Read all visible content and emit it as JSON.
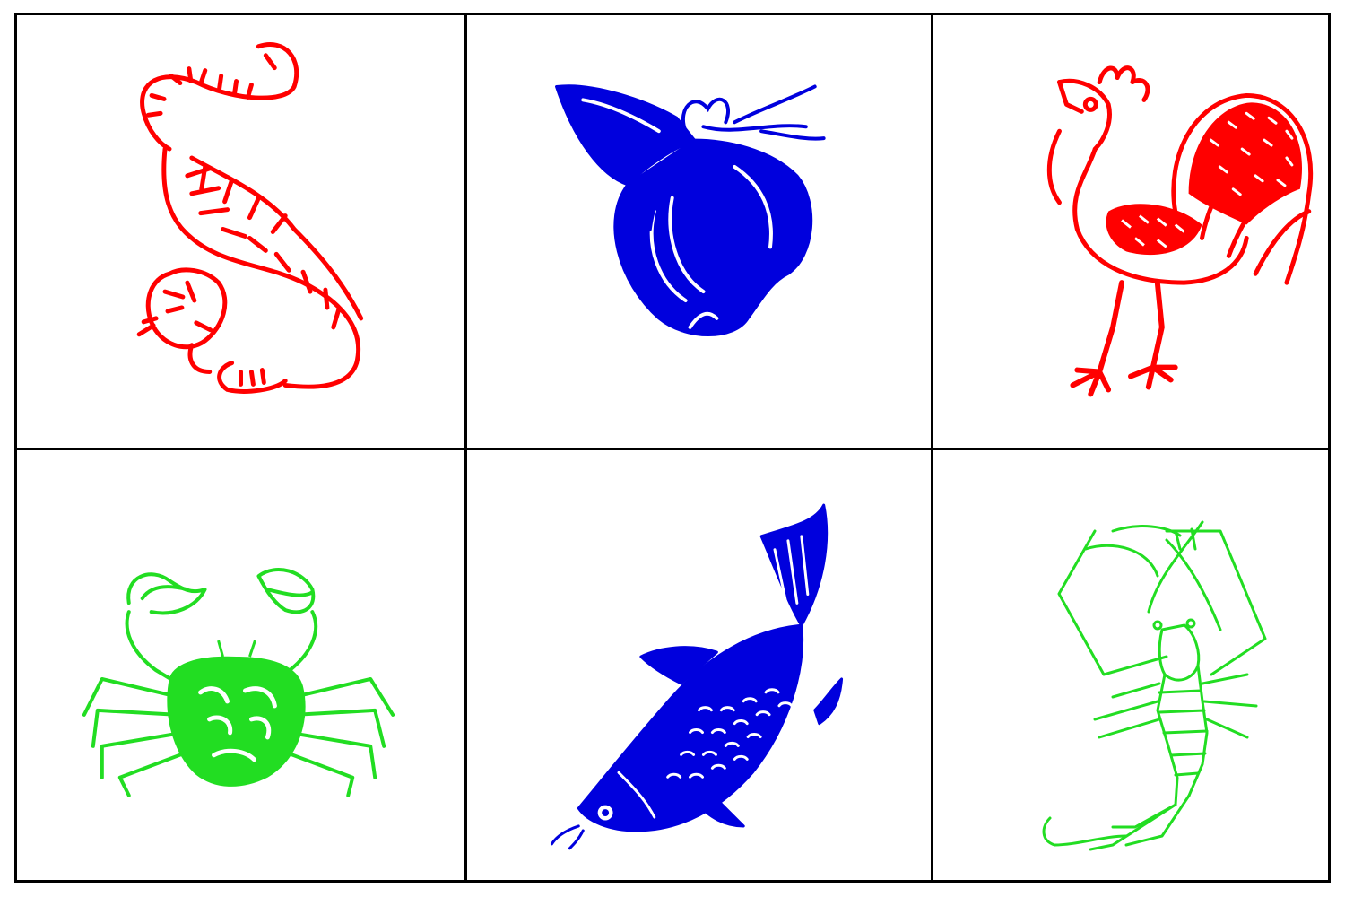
{
  "board": {
    "rows": 2,
    "cols": 3,
    "cells": [
      {
        "symbol": "tiger-icon",
        "color": "#ff0000"
      },
      {
        "symbol": "gourd-icon",
        "color": "#0000dd"
      },
      {
        "symbol": "rooster-icon",
        "color": "#ff0000"
      },
      {
        "symbol": "crab-icon",
        "color": "#22dd22"
      },
      {
        "symbol": "fish-icon",
        "color": "#0000dd"
      },
      {
        "symbol": "shrimp-icon",
        "color": "#22dd22"
      }
    ]
  }
}
